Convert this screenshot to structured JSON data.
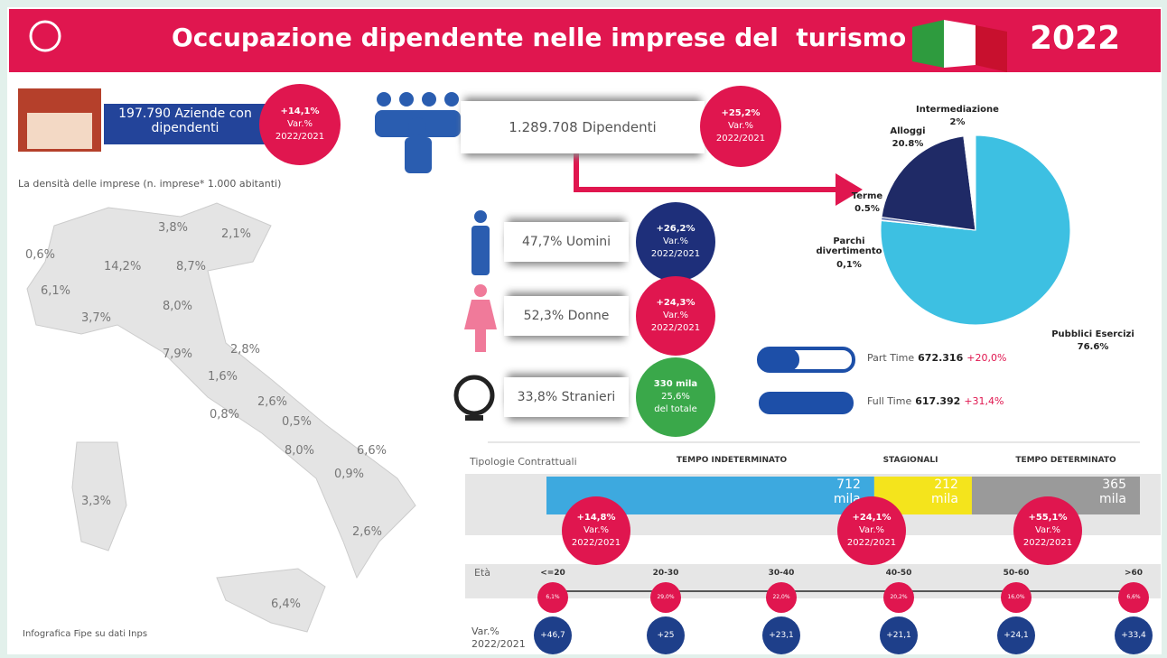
{
  "header": {
    "title": "Occupazione dipendente nelle imprese del  turismo",
    "year": "2022"
  },
  "aziende": {
    "text": "197.790 Aziende con dipendenti",
    "badge": [
      "+14,1%",
      "Var.%",
      "2022/2021"
    ]
  },
  "density_label": "La densità delle imprese (n. imprese* 1.000 abitanti)",
  "map_labels": [
    "3,8%",
    "2,1%",
    "0,6%",
    "14,2%",
    "8,7%",
    "6,1%",
    "8,0%",
    "3,7%",
    "7,9%",
    "2,8%",
    "1,6%",
    "2,6%",
    "0,8%",
    "0,5%",
    "8,0%",
    "6,6%",
    "0,9%",
    "3,3%",
    "2,6%",
    "6,4%"
  ],
  "credit": "Infografica Fipe su dati Inps",
  "dipendenti": {
    "text": "1.289.708 Dipendenti",
    "badge": [
      "+25,2%",
      "Var.%",
      "2022/2021"
    ]
  },
  "groups": [
    {
      "text": "47,7% Uomini",
      "badge": [
        "+26,2%",
        "Var.%",
        "2022/2021"
      ]
    },
    {
      "text": "52,3% Donne",
      "badge": [
        "+24,3%",
        "Var.%",
        "2022/2021"
      ]
    },
    {
      "text": "33,8% Stranieri",
      "badge": [
        "330 mila",
        "25,6%",
        "del totale"
      ]
    }
  ],
  "pie": {
    "type": "pie",
    "names": [
      "Pubblici Esercizi",
      "Parchi divertimento",
      "Terme",
      "Alloggi",
      "Intermediazione"
    ],
    "values": [
      76.6,
      0.1,
      0.5,
      20.8,
      2
    ],
    "value_labels": [
      "76.6%",
      "0,1%",
      "0.5%",
      "20.8%",
      "2%"
    ],
    "colors": [
      "#3dc0e2",
      "#2aa0c8",
      "#6a7fb8",
      "#1f2a66",
      "#ffffff"
    ]
  },
  "hours": [
    {
      "name": "Part Time",
      "value": "672.316",
      "change": "+20,0%"
    },
    {
      "name": "Full Time",
      "value": "617.392",
      "change": "+31,4%"
    }
  ],
  "contracts": {
    "label": "Tipologie Contrattuali",
    "items": [
      {
        "name": "TEMPO INDETERMINATO",
        "value": 712,
        "unit": "mila",
        "badge": [
          "+14,8%",
          "Var.%",
          "2022/2021"
        ]
      },
      {
        "name": "STAGIONALI",
        "value": 212,
        "unit": "mila",
        "badge": [
          "+24,1%",
          "Var.%",
          "2022/2021"
        ]
      },
      {
        "name": "TEMPO DETERMINATO",
        "value": 365,
        "unit": "mila",
        "badge": [
          "+55,1%",
          "Var.%",
          "2022/2021"
        ]
      }
    ]
  },
  "age": {
    "label": "Età",
    "var_label": "Var.%",
    "var_period": "2022/2021",
    "groups": [
      "<=20",
      "20-30",
      "30-40",
      "40-50",
      "50-60",
      ">60"
    ],
    "shares": [
      "6,1%",
      "29,0%",
      "22,0%",
      "20,2%",
      "16,0%",
      "6,6%"
    ],
    "changes": [
      "+46,7",
      "+25",
      "+23,1",
      "+21,1",
      "+24,1",
      "+33,4"
    ]
  }
}
